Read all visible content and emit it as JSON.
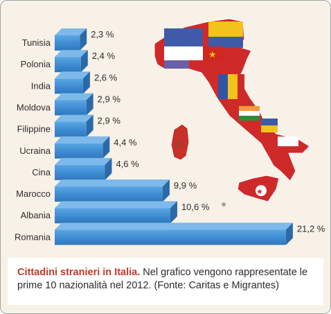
{
  "chart_data": {
    "type": "bar",
    "orientation": "horizontal",
    "categories": [
      "Tunisia",
      "Polonia",
      "India",
      "Moldova",
      "Filippine",
      "Ucraina",
      "Cina",
      "Marocco",
      "Albania",
      "Romania"
    ],
    "values": [
      2.3,
      2.4,
      2.6,
      2.9,
      2.9,
      4.4,
      4.6,
      9.9,
      10.6,
      21.2
    ],
    "value_labels": [
      "2,3 %",
      "2,4 %",
      "2,6 %",
      "2,9 %",
      "2,9 %",
      "4,4 %",
      "4,6 %",
      "9,9 %",
      "10,6 %",
      "21,2 %"
    ],
    "title": "",
    "xlabel": "",
    "ylabel": "",
    "bar_color": "#3f8dd3",
    "grid": false,
    "legend": "none"
  },
  "caption": {
    "title": "Cittadini stranieri in Italia.",
    "text": " Nel grafico vengono rappresentate le prime 10 nazionalità nel 2012. (Fonte: Caritas e Migrantes)"
  },
  "colors": {
    "background": "#f7f1e7",
    "caption_title": "#c0392b",
    "map_flags": [
      "#cf2a2a",
      "#3f5aa8",
      "#f2c31a",
      "#ffffff",
      "#1d7a3c"
    ]
  },
  "decor": {
    "map": "italy-flags-map"
  }
}
